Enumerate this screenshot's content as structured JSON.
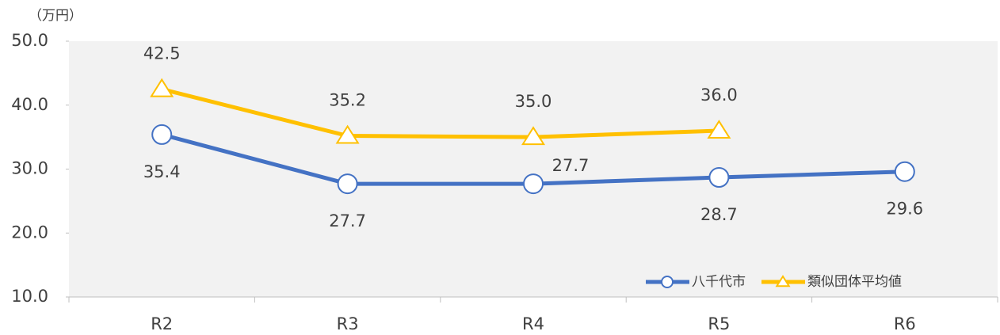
{
  "chart_data": {
    "type": "line",
    "y_label": "（万円）",
    "categories": [
      "R2",
      "R3",
      "R4",
      "R5",
      "R6"
    ],
    "series": [
      {
        "name": "八千代市",
        "color": "#4472c4",
        "marker": "circle",
        "values": [
          35.4,
          27.7,
          27.7,
          28.7,
          29.6
        ],
        "value_labels": [
          "35.4",
          "27.7",
          "27.7",
          "28.7",
          "29.6"
        ]
      },
      {
        "name": "類似団体平均値",
        "color": "#ffc000",
        "marker": "triangle",
        "values": [
          42.5,
          35.2,
          35.0,
          36.0,
          null
        ],
        "value_labels": [
          "42.5",
          "35.2",
          "35.0",
          "36.0",
          null
        ]
      }
    ],
    "ylim": [
      10,
      50
    ],
    "yticks": [
      {
        "value": 10,
        "label": "10.0"
      },
      {
        "value": 20,
        "label": "20.0"
      },
      {
        "value": 30,
        "label": "30.0"
      },
      {
        "value": 40,
        "label": "40.0"
      },
      {
        "value": 50,
        "label": "50.0"
      }
    ],
    "legend": "lower right"
  }
}
